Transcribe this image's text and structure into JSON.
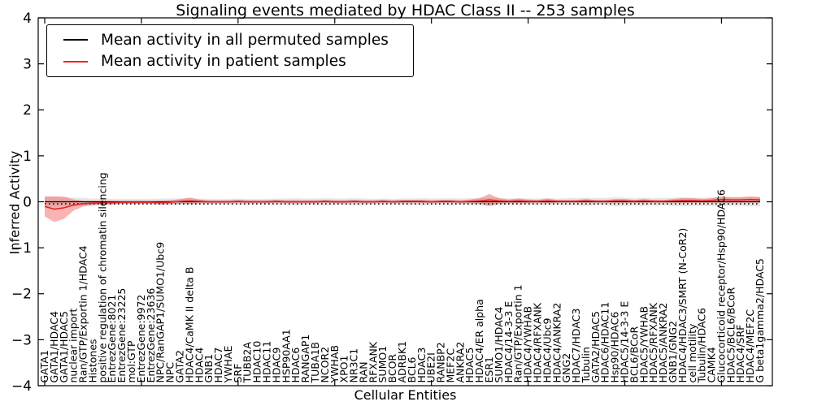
{
  "title": "Signaling events mediated by HDAC Class II -- 253 samples",
  "legend": {
    "entries": [
      {
        "label": "Mean activity in all permuted samples",
        "color": "#000000"
      },
      {
        "label": "Mean activity in patient samples",
        "color": "#ff1f1f"
      }
    ]
  },
  "colors": {
    "permuted_line": "#000000",
    "permuted_band": "#d8d8d8",
    "patient_line": "#e62222",
    "patient_band": "#ef4040",
    "frame": "#000000"
  },
  "chart_data": {
    "type": "line",
    "title": "Signaling events mediated by HDAC Class II -- 253 samples",
    "xlabel": "Cellular Entities",
    "ylabel": "Inferred Activity",
    "ylim": [
      -4,
      4
    ],
    "yticks": [
      4,
      3,
      2,
      1,
      0,
      -1,
      -2,
      -3,
      -4
    ],
    "ytick_labels": [
      "4",
      "3",
      "2",
      "1",
      "0",
      "−1",
      "−2",
      "−3",
      "−4"
    ],
    "grid": false,
    "legend_position": "upper left",
    "categories": [
      "GATA1",
      "GATA1/HDAC4",
      "GATA1/HDAC5",
      "nuclear import",
      "Ran/GTP/Exportin 1/HDAC4",
      "Histones",
      "positive regulation of chromatin silencing",
      "EntrezGene:8021",
      "EntrezGene:23225",
      "mol:GTP",
      "EntrezGene:9972",
      "EntrezGene:23636",
      "NPC/RanGAP1/SUMO1/Ubc9",
      "NPC",
      "GATA2",
      "HDAC4/CaMK II delta B",
      "HDAC4",
      "GNB1",
      "HDAC7",
      "YWHAE",
      "SRF",
      "TUBB2A",
      "HDAC10",
      "HDAC11",
      "HDAC9",
      "HSP90AA1",
      "HDAC6",
      "RANGAP1",
      "TUBA1B",
      "NCOR2",
      "YWHAB",
      "XPO1",
      "NR3C1",
      "RAN",
      "RFXANK",
      "SUMO1",
      "BCOR",
      "ADRBK1",
      "BCL6",
      "HDAC3",
      "UBE2I",
      "RANBP2",
      "MEF2C",
      "ANKRA2",
      "HDAC5",
      "HDAC4/ER alpha",
      "ESR1",
      "SUMO1/HDAC4",
      "HDAC4/14-3-3 E",
      "Ran/GTP/Exportin 1",
      "HDAC4/YWHAB",
      "HDAC4/RFXANK",
      "HDAC4/Ubc9",
      "HDAC4/ANKRA2",
      "GNG2",
      "HDAC7/HDAC3",
      "Tubulin",
      "GATA2/HDAC5",
      "HDAC6/HDAC11",
      "Hsp90/HDAC6",
      "HDAC5/14-3-3 E",
      "BCL6/BCoR",
      "HDAC5/YWHAB",
      "HDAC5/RFXANK",
      "HDAC5/ANKRA2",
      "GNB1/GNG2",
      "HDAC4/HDAC3/SMRT (N-CoR2)",
      "cell motility",
      "Tubulin/HDAC6",
      "CAMK4",
      "Glucocorticoid receptor/Hsp90/HDAC6",
      "HDAC5/BCL6/BCoR",
      "HDAC4/SRF",
      "HDAC4/MEF2C",
      "G beta1gamma2/HDAC5"
    ],
    "series": [
      {
        "name": "Mean activity in all permuted samples",
        "values": [
          0,
          0,
          0,
          0,
          0,
          0,
          0,
          0,
          0,
          0,
          0,
          0,
          0,
          0,
          0,
          0,
          0,
          0,
          0,
          0,
          0,
          0,
          0,
          0,
          0,
          0,
          0,
          0,
          0,
          0,
          0,
          0,
          0,
          0,
          0,
          0,
          0,
          0,
          0,
          0,
          0,
          0,
          0,
          0,
          0,
          0,
          0,
          0,
          0,
          0,
          0,
          0,
          0,
          0,
          0,
          0,
          0,
          0,
          0,
          0,
          0,
          0,
          0,
          0,
          0,
          0,
          0,
          0,
          0,
          0,
          0,
          0,
          0,
          0,
          0
        ],
        "std": [
          0.1,
          0.11,
          0.1,
          0.09,
          0.08,
          0.07,
          0.07,
          0.06,
          0.06,
          0.06,
          0.06,
          0.06,
          0.07,
          0.07,
          0.07,
          0.08,
          0.07,
          0.06,
          0.06,
          0.06,
          0.07,
          0.06,
          0.06,
          0.06,
          0.07,
          0.07,
          0.08,
          0.07,
          0.07,
          0.08,
          0.07,
          0.07,
          0.08,
          0.07,
          0.06,
          0.07,
          0.06,
          0.07,
          0.07,
          0.08,
          0.07,
          0.07,
          0.08,
          0.07,
          0.08,
          0.08,
          0.09,
          0.08,
          0.07,
          0.08,
          0.07,
          0.07,
          0.08,
          0.07,
          0.08,
          0.08,
          0.09,
          0.08,
          0.08,
          0.1,
          0.09,
          0.08,
          0.09,
          0.08,
          0.08,
          0.09,
          0.1,
          0.09,
          0.09,
          0.09,
          0.1,
          0.09,
          0.09,
          0.1,
          0.1
        ]
      },
      {
        "name": "Mean activity in patient samples",
        "values": [
          -0.1,
          -0.16,
          -0.13,
          -0.07,
          -0.04,
          -0.03,
          -0.02,
          -0.02,
          -0.01,
          -0.01,
          -0.01,
          -0.01,
          -0.02,
          -0.01,
          0.01,
          0.02,
          0.01,
          0.0,
          0.0,
          0.0,
          0.01,
          0.0,
          0.0,
          0.0,
          0.01,
          0.0,
          0.0,
          0.0,
          0.0,
          0.01,
          0.0,
          0.0,
          0.01,
          0.0,
          0.0,
          0.01,
          0.0,
          0.01,
          0.01,
          0.01,
          0.0,
          0.01,
          0.01,
          0.0,
          0.01,
          0.02,
          0.04,
          0.02,
          0.01,
          0.02,
          0.01,
          0.01,
          0.02,
          0.01,
          0.01,
          0.01,
          0.02,
          0.01,
          0.01,
          0.02,
          0.02,
          0.01,
          0.02,
          0.01,
          0.01,
          0.02,
          0.03,
          0.03,
          0.02,
          0.03,
          0.05,
          0.04,
          0.04,
          0.05,
          0.04
        ],
        "std": [
          0.22,
          0.28,
          0.24,
          0.12,
          0.06,
          0.05,
          0.04,
          0.04,
          0.03,
          0.03,
          0.03,
          0.03,
          0.04,
          0.04,
          0.05,
          0.07,
          0.04,
          0.03,
          0.03,
          0.03,
          0.03,
          0.03,
          0.03,
          0.03,
          0.03,
          0.03,
          0.03,
          0.03,
          0.03,
          0.03,
          0.03,
          0.03,
          0.03,
          0.03,
          0.03,
          0.03,
          0.03,
          0.03,
          0.03,
          0.03,
          0.03,
          0.03,
          0.03,
          0.03,
          0.04,
          0.06,
          0.13,
          0.06,
          0.04,
          0.05,
          0.04,
          0.03,
          0.05,
          0.03,
          0.03,
          0.03,
          0.04,
          0.03,
          0.03,
          0.04,
          0.04,
          0.03,
          0.04,
          0.03,
          0.03,
          0.04,
          0.05,
          0.05,
          0.04,
          0.05,
          0.07,
          0.06,
          0.06,
          0.07,
          0.06
        ]
      }
    ]
  }
}
